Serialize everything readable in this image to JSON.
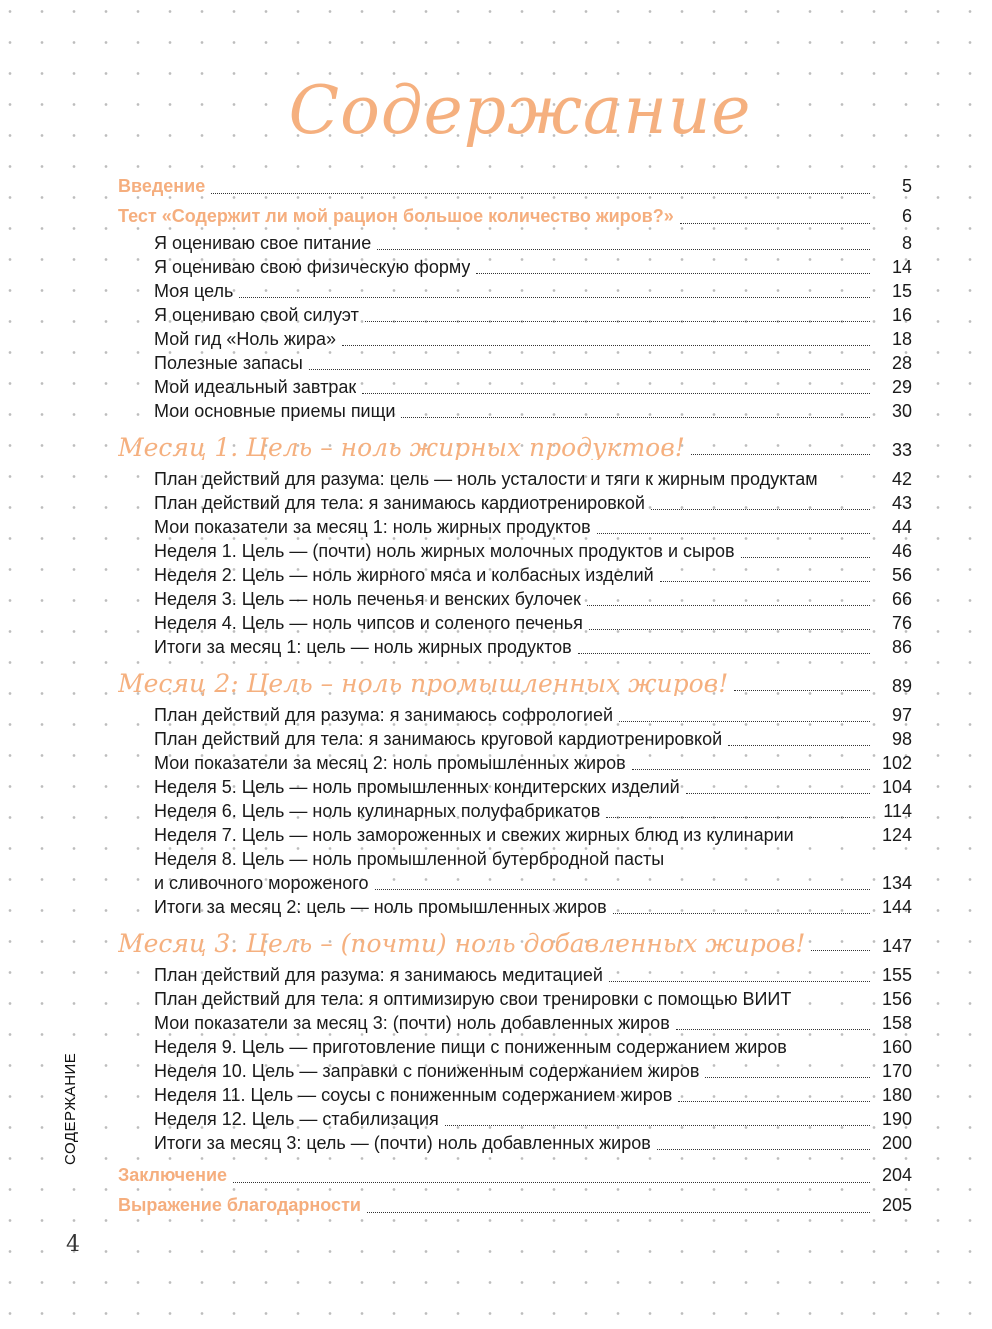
{
  "title": "Содержание",
  "side_label": "СОДЕРЖАНИЕ",
  "page_number": "4",
  "colors": {
    "accent": "#f5ae7e"
  },
  "toc": [
    {
      "type": "top",
      "text": "Введение",
      "page": "5"
    },
    {
      "type": "top",
      "text": "Тест «Содержит ли мой рацион большое количество жиров?»",
      "page": "6"
    },
    {
      "type": "sub",
      "text": "Я оцениваю свое питание",
      "page": "8"
    },
    {
      "type": "sub",
      "text": "Я оцениваю свою физическую форму",
      "page": "14"
    },
    {
      "type": "sub",
      "text": "Моя цель",
      "page": "15"
    },
    {
      "type": "sub",
      "text": "Я оцениваю свой силуэт",
      "page": "16"
    },
    {
      "type": "sub",
      "text": "Мой гид «Ноль жира»",
      "page": "18"
    },
    {
      "type": "sub",
      "text": "Полезные запасы",
      "page": "28"
    },
    {
      "type": "sub",
      "text": "Мой идеальный завтрак",
      "page": "29"
    },
    {
      "type": "sub",
      "text": "Мои основные приемы пищи",
      "page": "30"
    },
    {
      "type": "month",
      "text": "Месяц 1. Цель – ноль жирных продуктов!",
      "page": "33"
    },
    {
      "type": "sub",
      "text": "План действий для разума: цель — ноль усталости и тяги к жирным продуктам",
      "page": "42",
      "noleader": true
    },
    {
      "type": "sub",
      "text": "План действий для тела: я занимаюсь кардиотренировкой",
      "page": "43"
    },
    {
      "type": "sub",
      "text": "Мои показатели за месяц 1: ноль жирных продуктов",
      "page": "44"
    },
    {
      "type": "sub",
      "text": "Неделя 1. Цель — (почти) ноль жирных молочных продуктов и сыров",
      "page": "46"
    },
    {
      "type": "sub",
      "text": "Неделя 2. Цель — ноль жирного мяса и колбасных изделий",
      "page": "56"
    },
    {
      "type": "sub",
      "text": "Неделя 3. Цель — ноль печенья и венских булочек",
      "page": "66"
    },
    {
      "type": "sub",
      "text": "Неделя 4. Цель — ноль чипсов и соленого печенья",
      "page": "76"
    },
    {
      "type": "sub",
      "text": "Итоги за месяц 1: цель — ноль жирных продуктов",
      "page": "86"
    },
    {
      "type": "month",
      "text": "Месяц 2: Цель – ноль промышленных жиров!",
      "page": "89"
    },
    {
      "type": "sub",
      "text": "План действий для разума: я занимаюсь софрологией",
      "page": "97"
    },
    {
      "type": "sub",
      "text": "План действий для тела: я занимаюсь круговой кардиотренировкой",
      "page": "98"
    },
    {
      "type": "sub",
      "text": "Мои показатели за месяц 2: ноль промышленных жиров",
      "page": "102"
    },
    {
      "type": "sub",
      "text": "Неделя 5. Цель — ноль промышленных кондитерских изделий",
      "page": "104"
    },
    {
      "type": "sub",
      "text": "Неделя 6. Цель — ноль кулинарных полуфабрикатов",
      "page": "114"
    },
    {
      "type": "sub",
      "text": "Неделя 7. Цель — ноль замороженных и свежих жирных блюд из кулинарии",
      "page": "124",
      "noleader": true
    },
    {
      "type": "sub",
      "text": "Неделя 8. Цель — ноль промышленной бутербродной пасты",
      "page": null,
      "noleader": true
    },
    {
      "type": "sub",
      "text": "и сливочного мороженого",
      "page": "134"
    },
    {
      "type": "sub",
      "text": "Итоги за месяц 2: цель — ноль промышленных жиров",
      "page": "144"
    },
    {
      "type": "month",
      "text": "Месяц 3. Цель – (почти) ноль добавленных жиров!",
      "page": "147"
    },
    {
      "type": "sub",
      "text": "План действий для разума: я занимаюсь медитацией",
      "page": "155"
    },
    {
      "type": "sub",
      "text": "План действий для тела: я оптимизирую свои тренировки с помощью ВИИТ",
      "page": "156",
      "noleader": true
    },
    {
      "type": "sub",
      "text": "Мои показатели за месяц 3: (почти) ноль добавленных жиров",
      "page": "158"
    },
    {
      "type": "sub",
      "text": "Неделя 9. Цель — приготовление пищи с пониженным содержанием жиров",
      "page": "160",
      "noleader": true
    },
    {
      "type": "sub",
      "text": "Неделя 10. Цель — заправки с пониженным содержанием жиров",
      "page": "170"
    },
    {
      "type": "sub",
      "text": "Неделя 11. Цель — соусы с пониженным содержанием жиров",
      "page": "180"
    },
    {
      "type": "sub",
      "text": "Неделя 12. Цель — стабилизация",
      "page": "190"
    },
    {
      "type": "sub",
      "text": "Итоги за месяц 3: цель — (почти) ноль добавленных жиров",
      "page": "200"
    },
    {
      "type": "top",
      "text": "Заключение",
      "page": "204",
      "gap": true
    },
    {
      "type": "top",
      "text": "Выражение благодарности",
      "page": "205"
    }
  ]
}
